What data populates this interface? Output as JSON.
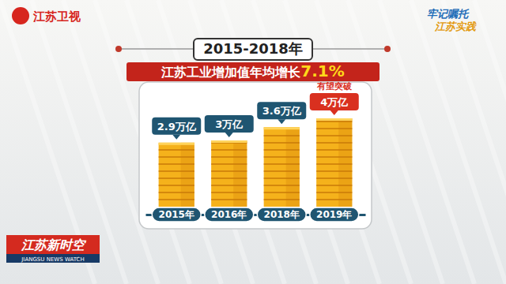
{
  "chart_data": {
    "type": "bar",
    "title": "2015-2018年",
    "subtitle": [
      "江苏工业增加值年均增长",
      "7.1%"
    ],
    "categories": [
      "2015年",
      "2016年",
      "2018年",
      "2019年"
    ],
    "values": [
      2.9,
      3,
      3.6,
      4
    ],
    "value_labels": [
      "2.9万亿",
      "3万亿",
      "3.6万亿",
      "4万亿"
    ],
    "color": "#f5b21b",
    "data_labels": true,
    "tick_labels": "x",
    "grid": false,
    "annotations": [
      {
        "text": "有望突破",
        "x": "2019年"
      }
    ]
  },
  "broadcast": {
    "channel": "江苏卫视",
    "slogan": [
      "牢记嘱托",
      "江苏实践"
    ],
    "program": "江苏新时空",
    "program_en": "JIANGSU NEWS WATCH"
  }
}
